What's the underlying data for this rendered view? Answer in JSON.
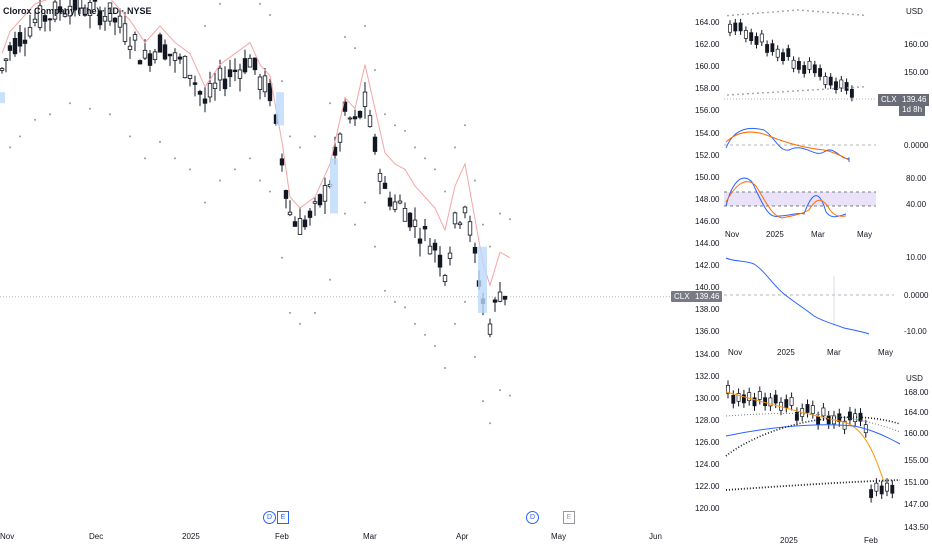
{
  "main_chart": {
    "title": "Clorox Company (The) · 1D · NYSE",
    "price_tag_symbol": "CLX",
    "price_tag_value": "139.46",
    "y_ticks": [
      "164.00",
      "162.00",
      "160.00",
      "158.00",
      "156.00",
      "154.00",
      "152.00",
      "150.00",
      "148.00",
      "146.00",
      "144.00",
      "142.00",
      "140.00",
      "138.00",
      "136.00",
      "134.00",
      "132.00",
      "130.00",
      "128.00",
      "126.00",
      "124.00",
      "122.00",
      "120.00"
    ],
    "x_ticks": [
      "Nov",
      "Dec",
      "2025",
      "Feb",
      "Mar",
      "Apr",
      "May",
      "Jun"
    ],
    "events": [
      {
        "label": "D",
        "type": "dividend"
      },
      {
        "label": "E",
        "type": "earnings"
      },
      {
        "label": "D",
        "type": "dividend"
      },
      {
        "label": "E",
        "type": "earnings"
      }
    ]
  },
  "panel_price": {
    "currency": "USD",
    "y_ticks": [
      "160.00",
      "150.00"
    ],
    "price_tag_symbol": "CLX",
    "price_tag_value": "139.46",
    "countdown": "1d 8h"
  },
  "panel_macd": {
    "y_ticks": [
      "0.0000"
    ]
  },
  "panel_stoch": {
    "y_ticks": [
      "80.00",
      "40.00"
    ],
    "x_ticks": [
      "Nov",
      "2025",
      "Mar",
      "May"
    ]
  },
  "panel_momentum": {
    "y_ticks": [
      "10.00",
      "0.0000",
      "-10.00"
    ],
    "x_ticks": [
      "Nov",
      "2025",
      "Mar",
      "May"
    ]
  },
  "panel_bottom": {
    "currency": "USD",
    "y_ticks": [
      "168.00",
      "164.00",
      "160.00",
      "155.00",
      "151.00",
      "147.00",
      "143.50"
    ],
    "x_ticks": [
      "2025",
      "Feb"
    ]
  },
  "colors": {
    "up_candle": "#131722",
    "down_candle": "#131722",
    "highlight_box": "#bbd9fb",
    "highlight_box_red": "#f7c9c9",
    "ma_line": "#f5a6a6",
    "dots": "#9598a1",
    "macd_blue": "#2962ff",
    "macd_orange": "#ff6d00",
    "stoch_band": "#e1d5f7"
  }
}
